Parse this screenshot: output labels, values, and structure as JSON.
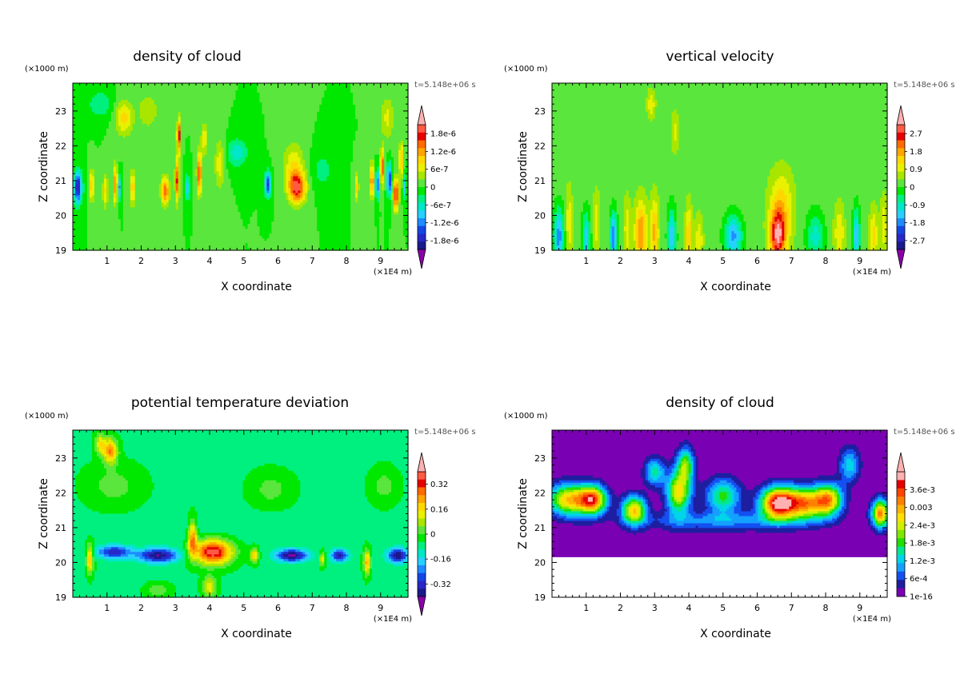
{
  "palettes": {
    "rainbow": [
      "#ffb0b0",
      "#ff5a44",
      "#e60000",
      "#ff6b00",
      "#ffa500",
      "#ffd700",
      "#e9f000",
      "#a8e600",
      "#5ae63c",
      "#00e800",
      "#00f080",
      "#00e8c8",
      "#28d0ff",
      "#1e8cff",
      "#1446e6",
      "#2828c8",
      "#1a1a8c",
      "#8a00a8"
    ],
    "cloud2": [
      "#ffb0b0",
      "#e60000",
      "#ff4400",
      "#ff8000",
      "#ffb400",
      "#ffe000",
      "#d0f000",
      "#80e800",
      "#20e000",
      "#00e890",
      "#00d4e8",
      "#14a0ff",
      "#1450f0",
      "#1e1ea0",
      "#7a00b4"
    ]
  },
  "chart_data": [
    {
      "type": "heatmap",
      "title": "density of cloud",
      "xlabel": "X coordinate",
      "ylabel": "Z coordinate",
      "x_unit": "(×1E4 m)",
      "y_unit": "(×1000 m)",
      "time_label": "t=5.148e+06 s",
      "xlim": [
        0,
        9.8
      ],
      "ylim": [
        19,
        23.8
      ],
      "x_ticks": [
        "1",
        "2",
        "3",
        "4",
        "5",
        "6",
        "7",
        "8",
        "9"
      ],
      "y_ticks": [
        "19",
        "20",
        "21",
        "22",
        "23"
      ],
      "colorbar": {
        "min": -2.1e-06,
        "max": 2.1e-06,
        "labels": [
          "1.8e-6",
          "1.2e-6",
          "6e-7",
          "0",
          "-6e-7",
          "-1.2e-6",
          "-1.8e-6"
        ],
        "label_values": [
          1.8e-06,
          1.2e-06,
          6e-07,
          0,
          -6e-07,
          -1.2e-06,
          -1.8e-06
        ],
        "extend_both": true
      },
      "background_value": 0,
      "blobs": [
        {
          "x": 0.15,
          "z": 20.8,
          "v": -1.9e-06,
          "sx": 0.12,
          "sz": 0.45
        },
        {
          "x": 0.55,
          "z": 20.85,
          "v": 1e-06,
          "sx": 0.08,
          "sz": 0.45
        },
        {
          "x": 0.95,
          "z": 20.7,
          "v": 8e-07,
          "sx": 0.08,
          "sz": 0.5
        },
        {
          "x": 1.25,
          "z": 20.9,
          "v": 1.5e-06,
          "sx": 0.06,
          "sz": 0.55
        },
        {
          "x": 1.35,
          "z": 20.8,
          "v": -1.2e-06,
          "sx": 0.05,
          "sz": 0.35
        },
        {
          "x": 1.75,
          "z": 20.8,
          "v": 1e-06,
          "sx": 0.08,
          "sz": 0.5
        },
        {
          "x": 2.7,
          "z": 20.7,
          "v": 1.5e-06,
          "sx": 0.12,
          "sz": 0.4
        },
        {
          "x": 3.05,
          "z": 21.0,
          "v": 1.6e-06,
          "sx": 0.06,
          "sz": 0.6
        },
        {
          "x": 3.1,
          "z": 22.3,
          "v": 1.8e-06,
          "sx": 0.05,
          "sz": 0.5
        },
        {
          "x": 3.35,
          "z": 20.8,
          "v": -1.1e-06,
          "sx": 0.06,
          "sz": 0.35
        },
        {
          "x": 3.7,
          "z": 21.2,
          "v": 1.7e-06,
          "sx": 0.07,
          "sz": 0.6
        },
        {
          "x": 3.85,
          "z": 22.2,
          "v": 7e-07,
          "sx": 0.1,
          "sz": 0.5
        },
        {
          "x": 4.3,
          "z": 21.5,
          "v": 7e-07,
          "sx": 0.15,
          "sz": 0.7
        },
        {
          "x": 1.5,
          "z": 22.8,
          "v": 9e-07,
          "sx": 0.25,
          "sz": 0.5
        },
        {
          "x": 2.2,
          "z": 23.0,
          "v": 5e-07,
          "sx": 0.3,
          "sz": 0.5
        },
        {
          "x": 0.8,
          "z": 23.2,
          "v": -5e-07,
          "sx": 0.35,
          "sz": 0.4
        },
        {
          "x": 5.7,
          "z": 20.9,
          "v": -1.6e-06,
          "sx": 0.09,
          "sz": 0.35
        },
        {
          "x": 6.55,
          "z": 20.8,
          "v": 1.9e-06,
          "sx": 0.25,
          "sz": 0.45
        },
        {
          "x": 6.45,
          "z": 21.5,
          "v": 7e-07,
          "sx": 0.3,
          "sz": 0.6
        },
        {
          "x": 4.8,
          "z": 21.8,
          "v": -7e-07,
          "sx": 0.3,
          "sz": 0.4
        },
        {
          "x": 7.3,
          "z": 21.3,
          "v": -4e-07,
          "sx": 0.3,
          "sz": 0.5
        },
        {
          "x": 8.3,
          "z": 20.8,
          "v": 9e-07,
          "sx": 0.06,
          "sz": 0.4
        },
        {
          "x": 8.75,
          "z": 21.0,
          "v": 1.5e-06,
          "sx": 0.06,
          "sz": 0.5
        },
        {
          "x": 8.9,
          "z": 20.9,
          "v": -1.6e-06,
          "sx": 0.05,
          "sz": 0.4
        },
        {
          "x": 9.05,
          "z": 21.4,
          "v": 1.6e-06,
          "sx": 0.06,
          "sz": 0.5
        },
        {
          "x": 9.25,
          "z": 21.0,
          "v": -1.8e-06,
          "sx": 0.06,
          "sz": 0.45
        },
        {
          "x": 9.45,
          "z": 20.6,
          "v": 1.9e-06,
          "sx": 0.08,
          "sz": 0.45
        },
        {
          "x": 9.6,
          "z": 21.6,
          "v": 1.2e-06,
          "sx": 0.06,
          "sz": 0.5
        },
        {
          "x": 9.7,
          "z": 20.8,
          "v": -9e-07,
          "sx": 0.05,
          "sz": 0.35
        },
        {
          "x": 9.2,
          "z": 22.8,
          "v": 6e-07,
          "sx": 0.2,
          "sz": 0.6
        }
      ]
    },
    {
      "type": "heatmap",
      "title": "vertical velocity",
      "xlabel": "X coordinate",
      "ylabel": "Z coordinate",
      "x_unit": "(×1E4 m)",
      "y_unit": "(×1000 m)",
      "time_label": "t=5.148e+06 s",
      "xlim": [
        0,
        9.8
      ],
      "ylim": [
        19,
        23.8
      ],
      "x_ticks": [
        "1",
        "2",
        "3",
        "4",
        "5",
        "6",
        "7",
        "8",
        "9"
      ],
      "y_ticks": [
        "19",
        "20",
        "21",
        "22",
        "23"
      ],
      "colorbar": {
        "min": -3.15,
        "max": 3.15,
        "labels": [
          "2.7",
          "1.8",
          "0.9",
          "0",
          "-0.9",
          "-1.8",
          "-2.7"
        ],
        "label_values": [
          2.7,
          1.8,
          0.9,
          0,
          -0.9,
          -1.8,
          -2.7
        ],
        "extend_both": true
      },
      "background_value": 0.2,
      "blobs": [
        {
          "x": 0.2,
          "z": 19.4,
          "v": -2.0,
          "sx": 0.15,
          "sz": 0.8
        },
        {
          "x": 0.5,
          "z": 19.8,
          "v": 0.9,
          "sx": 0.1,
          "sz": 1.0
        },
        {
          "x": 1.0,
          "z": 19.3,
          "v": -1.6,
          "sx": 0.12,
          "sz": 0.8
        },
        {
          "x": 1.3,
          "z": 19.8,
          "v": 0.8,
          "sx": 0.1,
          "sz": 0.9
        },
        {
          "x": 1.8,
          "z": 19.4,
          "v": -2.2,
          "sx": 0.1,
          "sz": 0.7
        },
        {
          "x": 2.2,
          "z": 19.6,
          "v": 0.9,
          "sx": 0.1,
          "sz": 0.9
        },
        {
          "x": 2.6,
          "z": 19.5,
          "v": 1.8,
          "sx": 0.18,
          "sz": 0.9
        },
        {
          "x": 3.0,
          "z": 19.5,
          "v": 1.5,
          "sx": 0.12,
          "sz": 1.0
        },
        {
          "x": 3.5,
          "z": 19.4,
          "v": -1.7,
          "sx": 0.12,
          "sz": 0.8
        },
        {
          "x": 4.0,
          "z": 19.4,
          "v": 1.3,
          "sx": 0.1,
          "sz": 0.9
        },
        {
          "x": 4.3,
          "z": 19.3,
          "v": 0.9,
          "sx": 0.12,
          "sz": 0.7
        },
        {
          "x": 5.3,
          "z": 19.4,
          "v": -1.9,
          "sx": 0.25,
          "sz": 0.6
        },
        {
          "x": 6.6,
          "z": 19.4,
          "v": 2.6,
          "sx": 0.22,
          "sz": 0.7
        },
        {
          "x": 6.7,
          "z": 20.2,
          "v": 1.2,
          "sx": 0.35,
          "sz": 1.1
        },
        {
          "x": 7.7,
          "z": 19.4,
          "v": -1.2,
          "sx": 0.25,
          "sz": 0.7
        },
        {
          "x": 8.4,
          "z": 19.5,
          "v": 1.0,
          "sx": 0.15,
          "sz": 0.8
        },
        {
          "x": 8.9,
          "z": 19.4,
          "v": -1.8,
          "sx": 0.1,
          "sz": 0.8
        },
        {
          "x": 9.4,
          "z": 19.4,
          "v": 1.1,
          "sx": 0.12,
          "sz": 0.8
        },
        {
          "x": 9.7,
          "z": 19.7,
          "v": 0.9,
          "sx": 0.1,
          "sz": 0.8
        },
        {
          "x": 2.9,
          "z": 23.2,
          "v": 0.9,
          "sx": 0.12,
          "sz": 0.4
        },
        {
          "x": 3.6,
          "z": 22.4,
          "v": 0.7,
          "sx": 0.1,
          "sz": 0.6
        },
        {
          "x": 6.5,
          "z": 22.5,
          "v": -0.2,
          "sx": 1.2,
          "sz": 0.8
        }
      ]
    },
    {
      "type": "heatmap",
      "title": "potential temperature deviation",
      "xlabel": "X coordinate",
      "ylabel": "Z coordinate",
      "x_unit": "(×1E4 m)",
      "y_unit": "(×1000 m)",
      "time_label": "t=5.148e+06 s",
      "xlim": [
        0,
        9.8
      ],
      "ylim": [
        19,
        23.8
      ],
      "x_ticks": [
        "1",
        "2",
        "3",
        "4",
        "5",
        "6",
        "7",
        "8",
        "9"
      ],
      "y_ticks": [
        "19",
        "20",
        "21",
        "22",
        "23"
      ],
      "colorbar": {
        "min": -0.4,
        "max": 0.4,
        "labels": [
          "0.32",
          "0.16",
          "0",
          "-0.16",
          "-0.32"
        ],
        "label_values": [
          0.32,
          0.16,
          0,
          -0.16,
          -0.32
        ],
        "extend_both": true
      },
      "background_value": -0.06,
      "blobs": [
        {
          "x": 1.1,
          "z": 23.2,
          "v": 0.32,
          "sx": 0.2,
          "sz": 0.35
        },
        {
          "x": 0.8,
          "z": 23.4,
          "v": 0.2,
          "sx": 0.15,
          "sz": 0.3
        },
        {
          "x": 0.5,
          "z": 20.1,
          "v": 0.28,
          "sx": 0.1,
          "sz": 0.4
        },
        {
          "x": 1.2,
          "z": 20.3,
          "v": -0.28,
          "sx": 0.5,
          "sz": 0.18
        },
        {
          "x": 2.5,
          "z": 20.2,
          "v": -0.34,
          "sx": 0.6,
          "sz": 0.2
        },
        {
          "x": 4.1,
          "z": 20.3,
          "v": 0.45,
          "sx": 0.55,
          "sz": 0.35
        },
        {
          "x": 3.5,
          "z": 20.7,
          "v": 0.3,
          "sx": 0.12,
          "sz": 0.5
        },
        {
          "x": 5.3,
          "z": 20.2,
          "v": 0.25,
          "sx": 0.12,
          "sz": 0.2
        },
        {
          "x": 6.4,
          "z": 20.2,
          "v": -0.36,
          "sx": 0.45,
          "sz": 0.18
        },
        {
          "x": 7.3,
          "z": 20.1,
          "v": 0.22,
          "sx": 0.08,
          "sz": 0.2
        },
        {
          "x": 7.8,
          "z": 20.2,
          "v": -0.3,
          "sx": 0.25,
          "sz": 0.18
        },
        {
          "x": 8.6,
          "z": 20.0,
          "v": 0.28,
          "sx": 0.1,
          "sz": 0.35
        },
        {
          "x": 9.5,
          "z": 20.2,
          "v": -0.34,
          "sx": 0.3,
          "sz": 0.2
        },
        {
          "x": 2.5,
          "z": 19.2,
          "v": 0.1,
          "sx": 0.35,
          "sz": 0.2
        },
        {
          "x": 4.0,
          "z": 19.3,
          "v": 0.2,
          "sx": 0.2,
          "sz": 0.3
        },
        {
          "x": 1.2,
          "z": 22.2,
          "v": 0.08,
          "sx": 0.8,
          "sz": 0.6
        },
        {
          "x": 5.8,
          "z": 22.1,
          "v": 0.08,
          "sx": 0.6,
          "sz": 0.5
        },
        {
          "x": 9.1,
          "z": 22.2,
          "v": 0.08,
          "sx": 0.4,
          "sz": 0.5
        },
        {
          "x": 4.5,
          "z": 21.0,
          "v": -0.02,
          "sx": 3.0,
          "sz": 0.4
        }
      ]
    },
    {
      "type": "heatmap",
      "title": "density of cloud",
      "xlabel": "X coordinate",
      "ylabel": "Z coordinate",
      "x_unit": "(×1E4 m)",
      "y_unit": "(×1000 m)",
      "time_label": "t=5.148e+06 s",
      "xlim": [
        0,
        9.8
      ],
      "ylim": [
        19,
        23.8
      ],
      "x_ticks": [
        "1",
        "2",
        "3",
        "4",
        "5",
        "6",
        "7",
        "8",
        "9"
      ],
      "y_ticks": [
        "19",
        "20",
        "21",
        "22",
        "23"
      ],
      "colorbar": {
        "min": 0,
        "max": 0.0042,
        "labels": [
          "3.6e-3",
          "0.003",
          "2.4e-3",
          "1.8e-3",
          "1.2e-3",
          "6e-4",
          "1e-16"
        ],
        "label_values": [
          0.0036,
          0.003,
          0.0024,
          0.0018,
          0.0012,
          0.0006,
          0
        ],
        "extend_both": false
      },
      "background_value": 0,
      "blank_below_z": 20.2,
      "blobs": [
        {
          "x": 0.5,
          "z": 21.8,
          "v": 0.0028,
          "sx": 0.6,
          "sz": 0.45
        },
        {
          "x": 1.2,
          "z": 21.8,
          "v": 0.0032,
          "sx": 0.4,
          "sz": 0.4
        },
        {
          "x": 2.4,
          "z": 21.5,
          "v": 0.0028,
          "sx": 0.35,
          "sz": 0.4
        },
        {
          "x": 3.7,
          "z": 22.0,
          "v": 0.0026,
          "sx": 0.35,
          "sz": 0.6
        },
        {
          "x": 3.9,
          "z": 22.8,
          "v": 0.002,
          "sx": 0.25,
          "sz": 0.5
        },
        {
          "x": 6.6,
          "z": 21.7,
          "v": 0.0039,
          "sx": 0.5,
          "sz": 0.45
        },
        {
          "x": 7.4,
          "z": 21.7,
          "v": 0.003,
          "sx": 0.6,
          "sz": 0.45
        },
        {
          "x": 8.1,
          "z": 21.8,
          "v": 0.0026,
          "sx": 0.4,
          "sz": 0.45
        },
        {
          "x": 9.6,
          "z": 21.4,
          "v": 0.0032,
          "sx": 0.25,
          "sz": 0.4
        },
        {
          "x": 5.0,
          "z": 21.9,
          "v": 0.0018,
          "sx": 0.5,
          "sz": 0.5
        },
        {
          "x": 3.0,
          "z": 22.6,
          "v": 0.0015,
          "sx": 0.3,
          "sz": 0.4
        },
        {
          "x": 8.7,
          "z": 22.8,
          "v": 0.0013,
          "sx": 0.3,
          "sz": 0.5
        },
        {
          "x": 5.0,
          "z": 21.2,
          "v": 0.0009,
          "sx": 2.5,
          "sz": 0.25
        },
        {
          "x": 4.5,
          "z": 20.7,
          "v": 0.0002,
          "sx": 3.0,
          "sz": 0.25
        }
      ]
    }
  ]
}
